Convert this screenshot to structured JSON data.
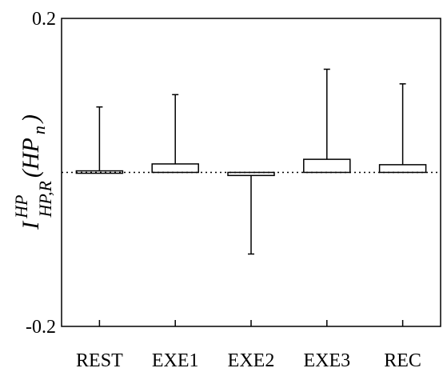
{
  "chart_data": {
    "type": "bar",
    "title": "",
    "xlabel": "",
    "ylabel": {
      "base": "I",
      "superscript": "HP",
      "subscript": "HP,R",
      "argument": "(HP",
      "argument_subscript": "n",
      "argument_close": ")"
    },
    "ylim": [
      -0.2,
      0.2
    ],
    "yticks": [
      {
        "value": 0.2,
        "label": "0.2"
      },
      {
        "value": -0.2,
        "label": "-0.2"
      }
    ],
    "categories": [
      "REST",
      "EXE1",
      "EXE2",
      "EXE3",
      "REC"
    ],
    "values": [
      0.002,
      0.011,
      -0.004,
      0.017,
      0.01
    ],
    "error_upper": [
      0.083,
      0.09,
      0.0,
      0.117,
      0.105
    ],
    "error_lower": [
      0.0,
      0.0,
      0.102,
      0.0,
      0.0
    ],
    "reference_line": 0,
    "grid": false,
    "colors": {
      "bar_fill": "#ffffff",
      "stroke": "#000000"
    }
  }
}
